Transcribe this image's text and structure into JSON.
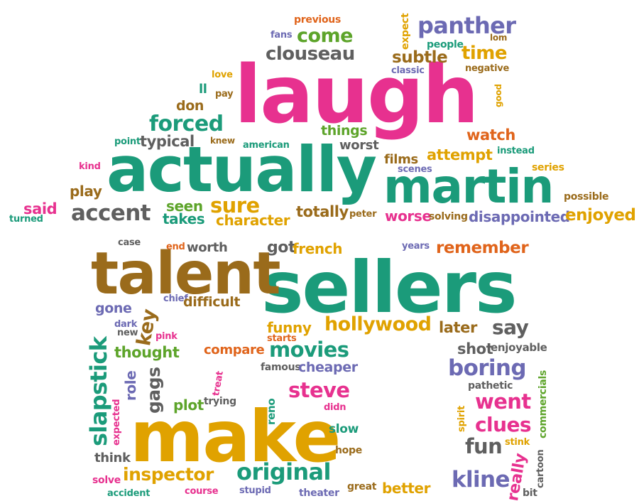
{
  "palette": {
    "teal": "#1b9b7a",
    "pink": "#e7318f",
    "gold": "#e0a200",
    "brown": "#9a6b1b",
    "orange": "#e0641b",
    "purple": "#6c6ab3",
    "green": "#5da42a",
    "gray": "#5f5f5f"
  },
  "words": [
    {
      "text": "laugh",
      "color": "pink"
    },
    {
      "text": "actually",
      "color": "teal"
    },
    {
      "text": "martin",
      "color": "teal"
    },
    {
      "text": "sellers",
      "color": "teal"
    },
    {
      "text": "talent",
      "color": "brown"
    },
    {
      "text": "make",
      "color": "gold"
    },
    {
      "text": "panther",
      "color": "purple"
    },
    {
      "text": "come",
      "color": "green"
    },
    {
      "text": "clouseau",
      "color": "gray"
    },
    {
      "text": "subtle",
      "color": "brown"
    },
    {
      "text": "time",
      "color": "gold"
    },
    {
      "text": "forced",
      "color": "teal"
    },
    {
      "text": "don",
      "color": "brown"
    },
    {
      "text": "typical",
      "color": "gray"
    },
    {
      "text": "things",
      "color": "green"
    },
    {
      "text": "worst",
      "color": "gray"
    },
    {
      "text": "watch",
      "color": "orange"
    },
    {
      "text": "attempt",
      "color": "gold"
    },
    {
      "text": "films",
      "color": "brown"
    },
    {
      "text": "sure",
      "color": "gold"
    },
    {
      "text": "seen",
      "color": "green"
    },
    {
      "text": "takes",
      "color": "teal"
    },
    {
      "text": "character",
      "color": "gold"
    },
    {
      "text": "totally",
      "color": "brown"
    },
    {
      "text": "accent",
      "color": "gray"
    },
    {
      "text": "play",
      "color": "brown"
    },
    {
      "text": "said",
      "color": "pink"
    },
    {
      "text": "worse",
      "color": "pink"
    },
    {
      "text": "solving",
      "color": "brown"
    },
    {
      "text": "disappointed",
      "color": "purple"
    },
    {
      "text": "enjoyed",
      "color": "gold"
    },
    {
      "text": "possible",
      "color": "brown"
    },
    {
      "text": "series",
      "color": "gold"
    },
    {
      "text": "instead",
      "color": "teal"
    },
    {
      "text": "previous",
      "color": "orange"
    },
    {
      "text": "fans",
      "color": "purple"
    },
    {
      "text": "expect",
      "color": "gold"
    },
    {
      "text": "people",
      "color": "teal"
    },
    {
      "text": "lom",
      "color": "brown"
    },
    {
      "text": "classic",
      "color": "purple"
    },
    {
      "text": "negative",
      "color": "brown"
    },
    {
      "text": "good",
      "color": "gold"
    },
    {
      "text": "love",
      "color": "gold"
    },
    {
      "text": "ll",
      "color": "teal"
    },
    {
      "text": "pay",
      "color": "brown"
    },
    {
      "text": "point",
      "color": "teal"
    },
    {
      "text": "knew",
      "color": "brown"
    },
    {
      "text": "american",
      "color": "teal"
    },
    {
      "text": "kind",
      "color": "pink"
    },
    {
      "text": "turned",
      "color": "teal"
    },
    {
      "text": "peter",
      "color": "brown"
    },
    {
      "text": "scenes",
      "color": "purple"
    },
    {
      "text": "case",
      "color": "gray"
    },
    {
      "text": "end",
      "color": "orange"
    },
    {
      "text": "worth",
      "color": "gray"
    },
    {
      "text": "got",
      "color": "gray"
    },
    {
      "text": "french",
      "color": "gold"
    },
    {
      "text": "years",
      "color": "purple"
    },
    {
      "text": "remember",
      "color": "orange"
    },
    {
      "text": "chief",
      "color": "purple"
    },
    {
      "text": "difficult",
      "color": "brown"
    },
    {
      "text": "gone",
      "color": "purple"
    },
    {
      "text": "key",
      "color": "brown"
    },
    {
      "text": "dark",
      "color": "purple"
    },
    {
      "text": "new",
      "color": "gray"
    },
    {
      "text": "pink",
      "color": "pink"
    },
    {
      "text": "funny",
      "color": "gold"
    },
    {
      "text": "hollywood",
      "color": "gold"
    },
    {
      "text": "later",
      "color": "brown"
    },
    {
      "text": "say",
      "color": "gray"
    },
    {
      "text": "starts",
      "color": "orange"
    },
    {
      "text": "slapstick",
      "color": "teal"
    },
    {
      "text": "thought",
      "color": "green"
    },
    {
      "text": "compare",
      "color": "orange"
    },
    {
      "text": "movies",
      "color": "teal"
    },
    {
      "text": "shot",
      "color": "gray"
    },
    {
      "text": "enjoyable",
      "color": "gray"
    },
    {
      "text": "famous",
      "color": "gray"
    },
    {
      "text": "cheaper",
      "color": "purple"
    },
    {
      "text": "boring",
      "color": "purple"
    },
    {
      "text": "role",
      "color": "purple"
    },
    {
      "text": "gags",
      "color": "gray"
    },
    {
      "text": "treat",
      "color": "pink"
    },
    {
      "text": "plot",
      "color": "green"
    },
    {
      "text": "trying",
      "color": "gray"
    },
    {
      "text": "reno",
      "color": "teal"
    },
    {
      "text": "steve",
      "color": "pink"
    },
    {
      "text": "didn",
      "color": "pink"
    },
    {
      "text": "pathetic",
      "color": "gray"
    },
    {
      "text": "went",
      "color": "pink"
    },
    {
      "text": "commercials",
      "color": "green"
    },
    {
      "text": "spirit",
      "color": "gold"
    },
    {
      "text": "clues",
      "color": "pink"
    },
    {
      "text": "expected",
      "color": "pink"
    },
    {
      "text": "slow",
      "color": "teal"
    },
    {
      "text": "stink",
      "color": "gold"
    },
    {
      "text": "fun",
      "color": "gray"
    },
    {
      "text": "cartoon",
      "color": "gray"
    },
    {
      "text": "think",
      "color": "gray"
    },
    {
      "text": "hope",
      "color": "brown"
    },
    {
      "text": "solve",
      "color": "pink"
    },
    {
      "text": "inspector",
      "color": "gold"
    },
    {
      "text": "original",
      "color": "teal"
    },
    {
      "text": "really",
      "color": "pink"
    },
    {
      "text": "kline",
      "color": "purple"
    },
    {
      "text": "accident",
      "color": "teal"
    },
    {
      "text": "course",
      "color": "pink"
    },
    {
      "text": "stupid",
      "color": "purple"
    },
    {
      "text": "theater",
      "color": "purple"
    },
    {
      "text": "great",
      "color": "brown"
    },
    {
      "text": "better",
      "color": "gold"
    },
    {
      "text": "bit",
      "color": "gray"
    }
  ]
}
